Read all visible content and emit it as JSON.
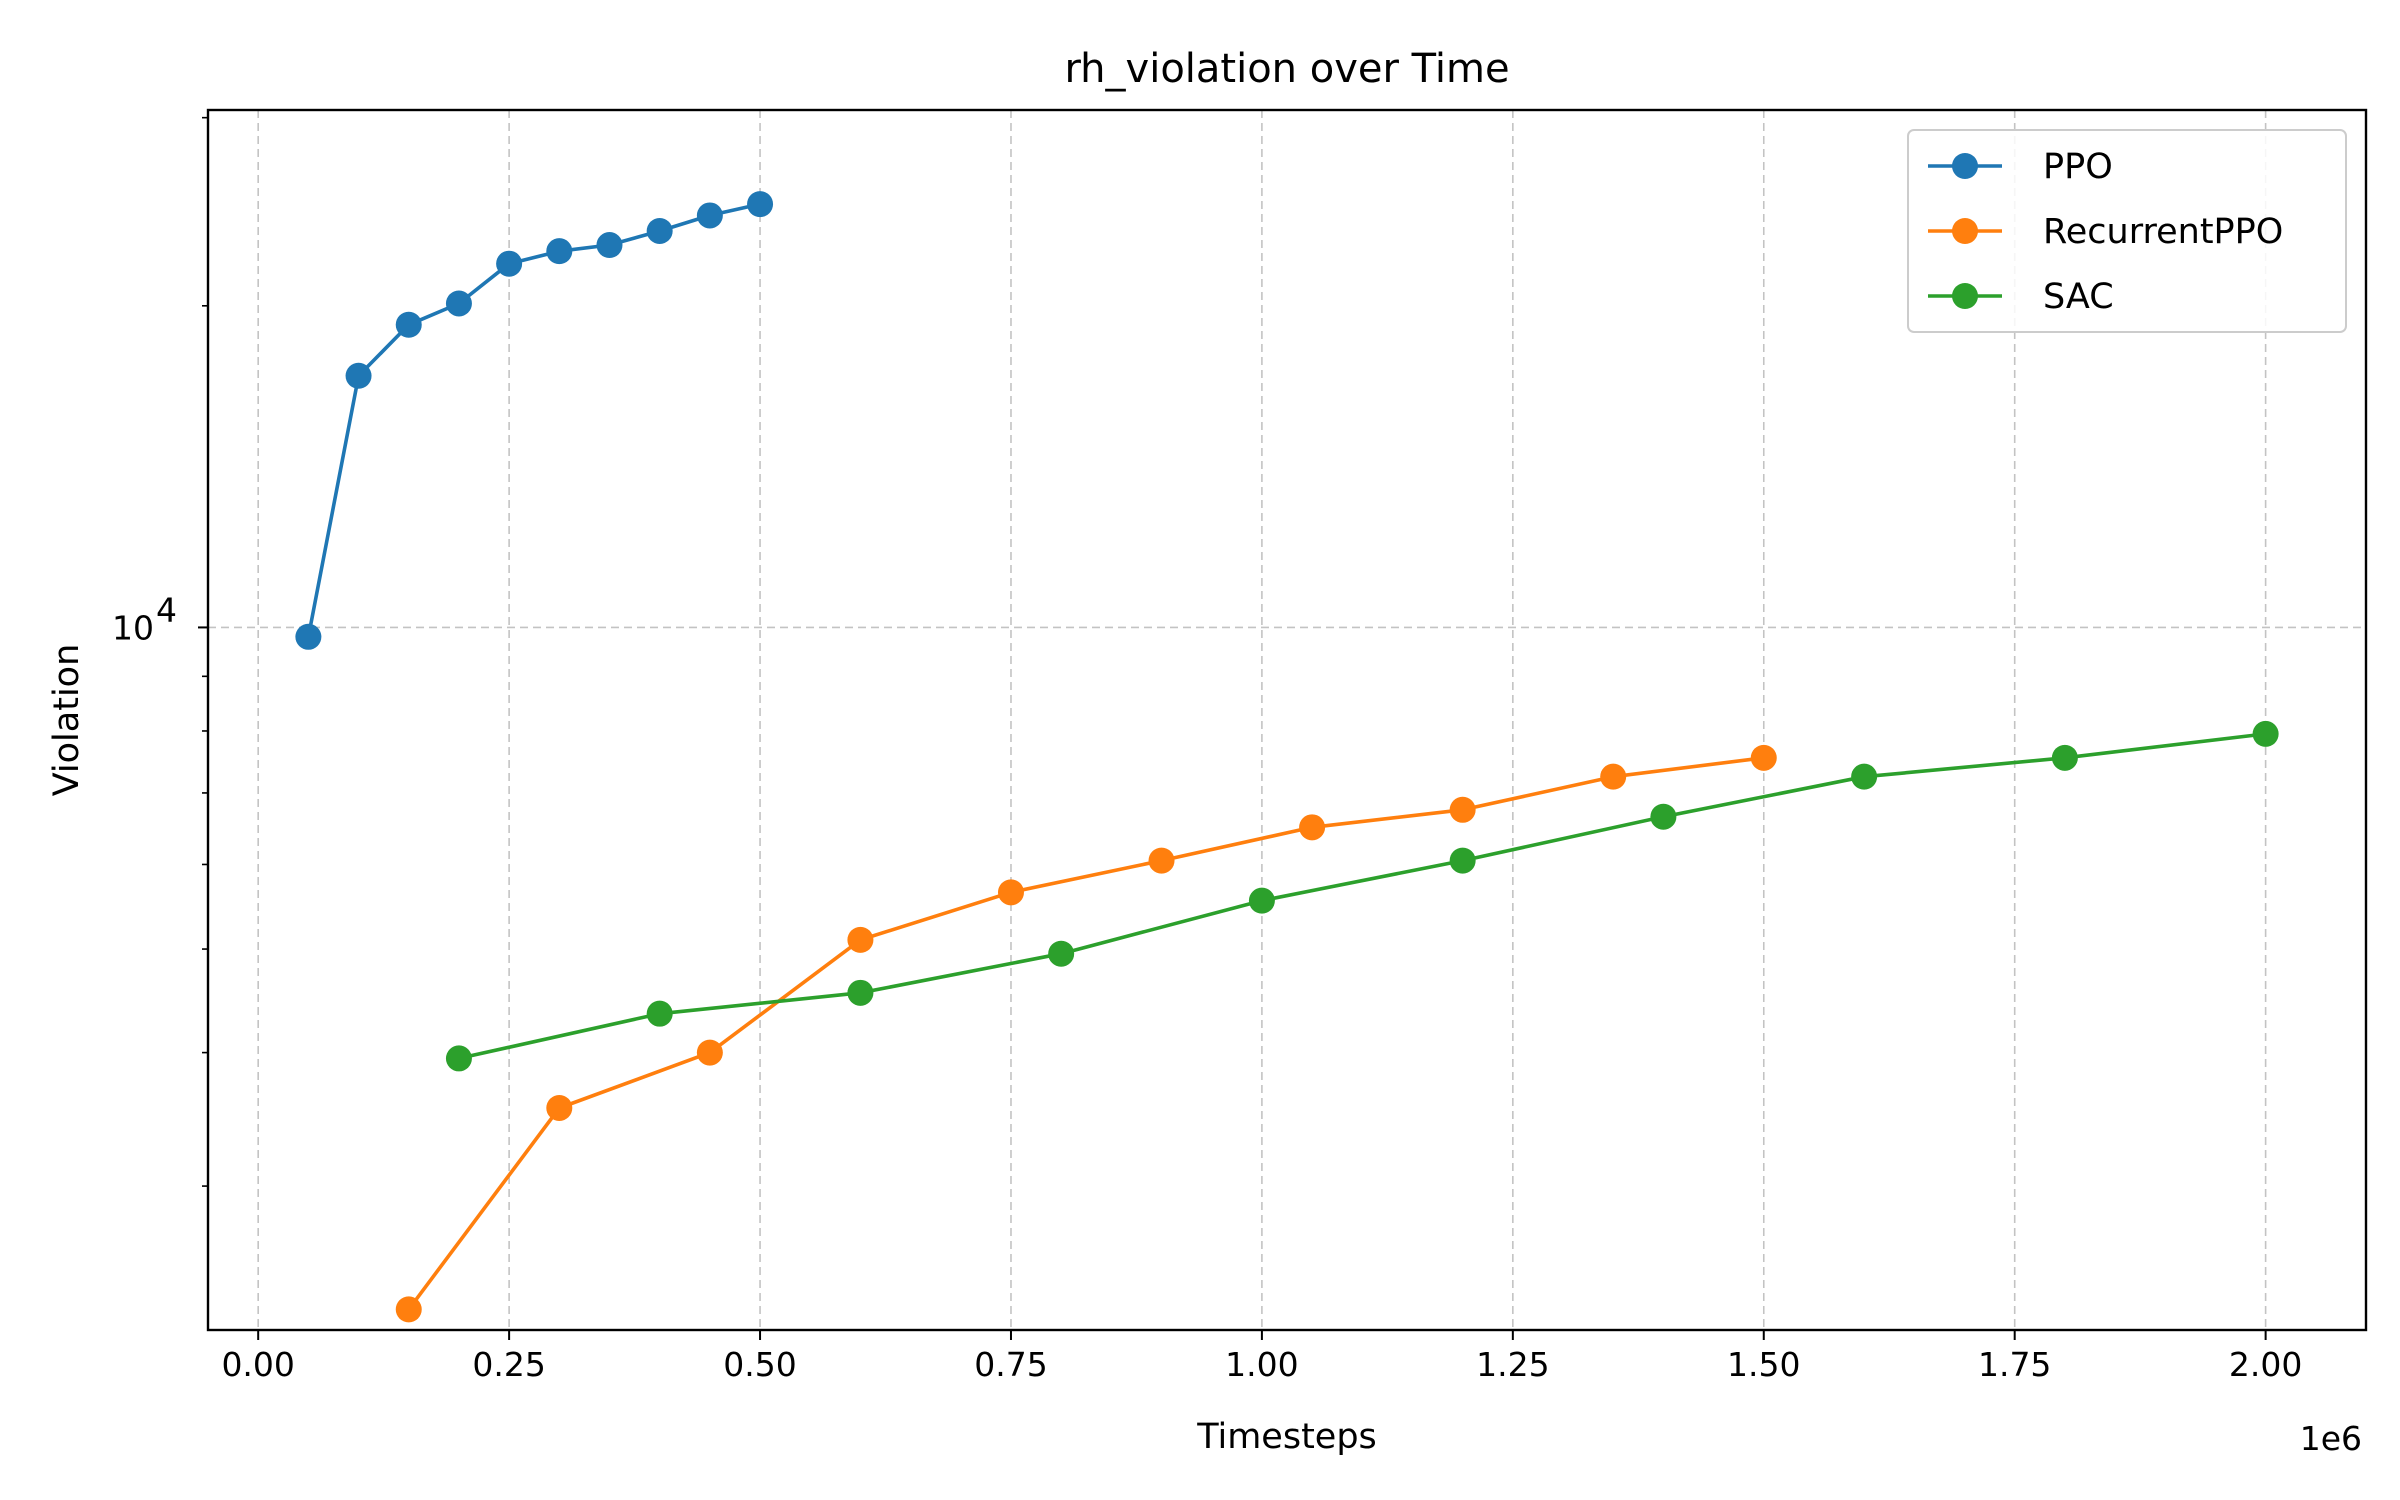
{
  "chart_data": {
    "type": "line",
    "title": "rh_violation over Time",
    "xlabel": "Timesteps",
    "ylabel": "Violation",
    "x_scale": "linear",
    "y_scale": "log",
    "x_offset_label": "1e6",
    "xlim": [
      -0.05,
      2.1
    ],
    "ylim": [
      2200,
      30500
    ],
    "x_ticks": [
      {
        "value": 0.0,
        "label": "0.00"
      },
      {
        "value": 0.25,
        "label": "0.25"
      },
      {
        "value": 0.5,
        "label": "0.50"
      },
      {
        "value": 0.75,
        "label": "0.75"
      },
      {
        "value": 1.0,
        "label": "1.00"
      },
      {
        "value": 1.25,
        "label": "1.25"
      },
      {
        "value": 1.5,
        "label": "1.50"
      },
      {
        "value": 1.75,
        "label": "1.75"
      },
      {
        "value": 2.0,
        "label": "2.00"
      }
    ],
    "y_major_ticks": [
      {
        "value": 10000,
        "base": "10",
        "exp": "4"
      }
    ],
    "y_minor_ticks": [
      3000,
      4000,
      5000,
      6000,
      7000,
      8000,
      9000,
      20000,
      30000
    ],
    "grid": true,
    "legend_position": "top-right",
    "series": [
      {
        "name": "PPO",
        "color": "#1f77b4",
        "x": [
          0.05,
          0.1,
          0.15,
          0.2,
          0.25,
          0.3,
          0.35,
          0.4,
          0.45,
          0.5
        ],
        "y": [
          9800,
          17200,
          19200,
          20100,
          21900,
          22500,
          22800,
          23500,
          24300,
          24900
        ]
      },
      {
        "name": "RecurrentPPO",
        "color": "#ff7f0e",
        "x": [
          0.15,
          0.3,
          0.45,
          0.6,
          0.75,
          0.9,
          1.05,
          1.2,
          1.35,
          1.5
        ],
        "y": [
          2300,
          3550,
          4000,
          5100,
          5650,
          6050,
          6500,
          6750,
          7250,
          7550
        ]
      },
      {
        "name": "SAC",
        "color": "#2ca02c",
        "x": [
          0.2,
          0.4,
          0.6,
          0.8,
          1.0,
          1.2,
          1.4,
          1.6,
          1.8,
          2.0
        ],
        "y": [
          3950,
          4350,
          4550,
          4950,
          5550,
          6050,
          6650,
          7250,
          7550,
          7950
        ]
      }
    ]
  }
}
